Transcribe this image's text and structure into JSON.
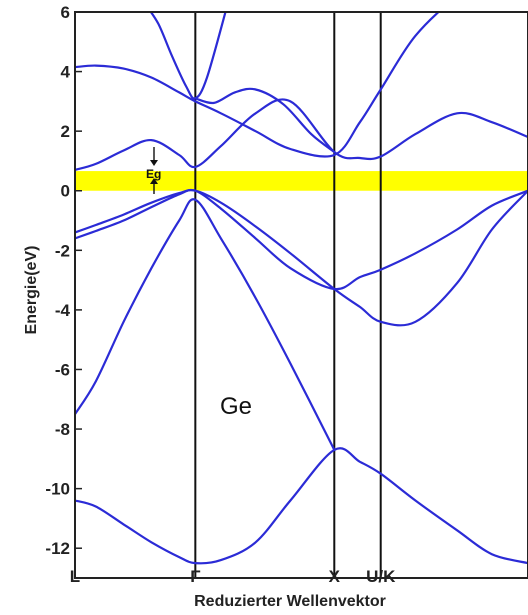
{
  "chart_data": {
    "type": "line",
    "title": "",
    "ylabel": "Energie(eV)",
    "xlabel": "Reduzierter Wellenvektor",
    "ylim": [
      -13,
      6
    ],
    "yticks": [
      6,
      4,
      2,
      0,
      -2,
      -4,
      -6,
      -8,
      -10,
      -12
    ],
    "kpoints": [
      {
        "label": "L",
        "x": 0.0
      },
      {
        "label": "Γ",
        "x": 0.866
      },
      {
        "label": "X",
        "x": 1.866
      },
      {
        "label": "U/K",
        "x": 2.2
      },
      {
        "label": "",
        "x": 3.26
      }
    ],
    "band_gap": {
      "label": "Eg",
      "lower": 0.0,
      "upper": 0.66,
      "color": "#ffff00"
    },
    "annotation": "Ge",
    "line_color": "#2b2bd6",
    "series": [
      {
        "x": [
          0,
          0.15,
          0.35,
          0.55,
          0.75,
          0.866,
          1.05,
          1.3,
          1.55,
          1.866,
          2.05,
          2.2,
          2.45,
          2.75,
          3.0,
          3.26
        ],
        "values": [
          -10.4,
          -10.6,
          -11.2,
          -11.8,
          -12.3,
          -12.5,
          -12.4,
          -11.8,
          -10.4,
          -8.7,
          -9.1,
          -9.5,
          -10.4,
          -11.4,
          -12.2,
          -12.5
        ]
      },
      {
        "x": [
          0,
          0.15,
          0.35,
          0.55,
          0.75,
          0.866,
          1.05,
          1.3,
          1.55,
          1.866
        ],
        "values": [
          -7.5,
          -6.4,
          -4.4,
          -2.6,
          -1.0,
          -0.3,
          -1.6,
          -3.6,
          -5.8,
          -8.7
        ]
      },
      {
        "x": [
          0,
          0.15,
          0.35,
          0.55,
          0.75,
          0.866,
          1.05,
          1.3,
          1.55,
          1.866,
          2.05,
          2.2,
          2.45,
          2.75,
          3.0,
          3.26
        ],
        "values": [
          -1.6,
          -1.35,
          -1.0,
          -0.55,
          -0.12,
          0.0,
          -0.6,
          -1.6,
          -2.6,
          -3.3,
          -2.9,
          -2.65,
          -2.1,
          -1.3,
          -0.5,
          0.0
        ]
      },
      {
        "x": [
          0,
          0.15,
          0.35,
          0.55,
          0.75,
          0.866,
          1.05,
          1.3,
          1.55,
          1.866,
          2.05,
          2.2,
          2.45,
          2.75,
          3.0,
          3.26
        ],
        "values": [
          -1.4,
          -1.15,
          -0.8,
          -0.4,
          -0.08,
          0.0,
          -0.4,
          -1.2,
          -2.1,
          -3.3,
          -3.9,
          -4.4,
          -4.4,
          -3.1,
          -1.3,
          0.0
        ]
      },
      {
        "x": [
          0,
          0.15,
          0.35,
          0.55,
          0.75,
          0.866,
          1.05,
          1.3,
          1.55,
          1.866,
          2.05,
          2.2,
          2.45,
          2.75,
          3.0,
          3.26
        ],
        "values": [
          0.7,
          0.9,
          1.35,
          1.7,
          1.2,
          0.8,
          1.5,
          2.6,
          3.0,
          1.3,
          1.1,
          1.15,
          1.9,
          2.6,
          2.3,
          1.8
        ]
      },
      {
        "x": [
          0,
          0.15,
          0.35,
          0.55,
          0.75,
          0.866,
          1.05,
          1.3,
          1.55,
          1.866,
          2.05,
          2.2,
          2.45,
          2.75,
          3.0,
          3.26
        ],
        "values": [
          4.15,
          4.2,
          4.1,
          3.8,
          3.3,
          3.0,
          2.6,
          2.0,
          1.4,
          1.2,
          2.3,
          3.4,
          5.2,
          6.5,
          7.0,
          7.0
        ]
      },
      {
        "x": [
          0.866,
          1.0,
          1.15,
          1.3,
          1.5,
          1.7,
          1.866
        ],
        "values": [
          3.1,
          2.95,
          3.3,
          3.4,
          2.9,
          1.9,
          1.3
        ]
      },
      {
        "x": [
          0.5,
          0.6,
          0.7,
          0.8,
          0.866,
          0.95,
          1.1
        ],
        "values": [
          6.3,
          5.6,
          4.5,
          3.5,
          3.1,
          3.8,
          6.3
        ]
      }
    ]
  }
}
